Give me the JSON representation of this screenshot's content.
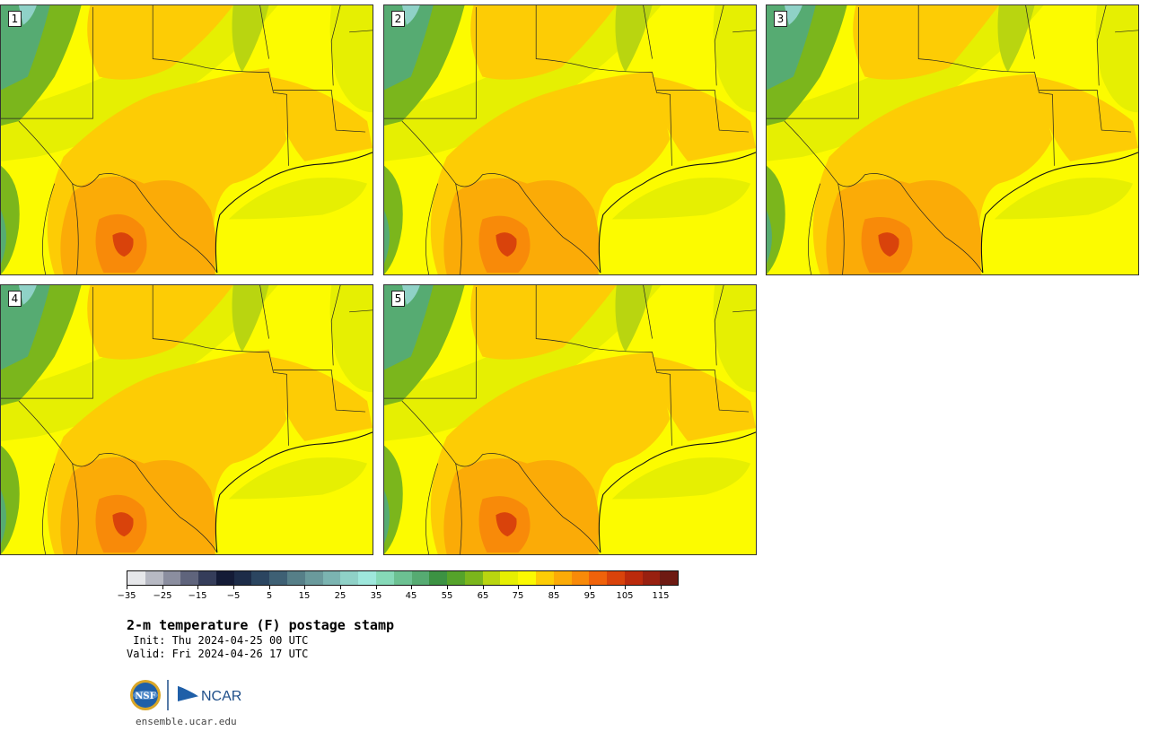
{
  "panels": [
    {
      "label": "1"
    },
    {
      "label": "2"
    },
    {
      "label": "3"
    },
    {
      "label": "4"
    },
    {
      "label": "5"
    }
  ],
  "colorbar": {
    "colors": [
      "#e6e7ea",
      "#b7b9c3",
      "#8b8e9f",
      "#5f647c",
      "#353d5a",
      "#141b36",
      "#1d2c48",
      "#2b4560",
      "#3e6074",
      "#567f88",
      "#6a9a9c",
      "#7bb4b1",
      "#8fd1c7",
      "#9ee7dc",
      "#86d9b8",
      "#6cc192",
      "#56ab72",
      "#3c9243",
      "#55a32a",
      "#7bb61c",
      "#b9d510",
      "#e6ef02",
      "#fbf902",
      "#fdcc05",
      "#fbab07",
      "#f88a09",
      "#f0620a",
      "#d9430b",
      "#bb2a0c",
      "#982010",
      "#6e1a12"
    ],
    "tick_labels": [
      "−35",
      "−25",
      "−15",
      "−5",
      "5",
      "15",
      "25",
      "35",
      "45",
      "55",
      "65",
      "75",
      "85",
      "95",
      "105",
      "115"
    ]
  },
  "title": "2-m temperature (F) postage stamp",
  "init_text": " Init: Thu 2024-04-25 00 UTC",
  "valid_text": "Valid: Fri 2024-04-26 17 UTC",
  "logos": {
    "nsf": "NSF",
    "ncar": "NCAR"
  },
  "site": "ensemble.ucar.edu"
}
